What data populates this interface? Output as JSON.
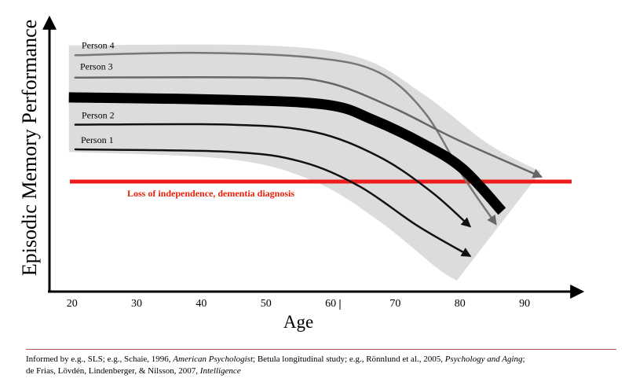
{
  "chart_data": {
    "type": "line",
    "ylabel": "Episodic Memory Performance",
    "xlabel": "Age",
    "x_ticks": [
      20,
      30,
      40,
      50,
      60,
      70,
      80,
      90
    ],
    "x_range": [
      17,
      98
    ],
    "y_range": [
      0,
      100
    ],
    "band": {
      "upper": [
        [
          20,
          95
        ],
        [
          50,
          95
        ],
        [
          65,
          90
        ],
        [
          75,
          75
        ],
        [
          85,
          55
        ],
        [
          93,
          44
        ]
      ],
      "lower": [
        [
          20,
          52
        ],
        [
          45,
          49
        ],
        [
          58,
          40
        ],
        [
          68,
          24
        ],
        [
          77,
          5
        ],
        [
          80,
          0
        ]
      ]
    },
    "threshold": {
      "label": "Loss of independence, dementia diagnosis",
      "y": 40,
      "color": "#ee1c1c"
    },
    "series": [
      {
        "name": "Person 4",
        "color": "#777777",
        "width": 2.5,
        "label_color": "#555555",
        "points": [
          [
            21,
            91
          ],
          [
            40,
            92
          ],
          [
            58,
            90
          ],
          [
            68,
            84
          ],
          [
            75,
            68
          ],
          [
            81,
            42
          ],
          [
            86,
            23
          ]
        ]
      },
      {
        "name": "Person 3",
        "color": "#666666",
        "width": 2.5,
        "label_color": "#222222",
        "points": [
          [
            21,
            82
          ],
          [
            50,
            82
          ],
          [
            60,
            80
          ],
          [
            70,
            70
          ],
          [
            80,
            57
          ],
          [
            93,
            42
          ]
        ]
      },
      {
        "name": "",
        "color": "#000000",
        "width": 13,
        "points": [
          [
            20,
            74
          ],
          [
            45,
            73
          ],
          [
            60,
            71
          ],
          [
            67,
            65
          ],
          [
            75,
            55
          ],
          [
            81,
            45
          ],
          [
            87,
            28
          ]
        ]
      },
      {
        "name": "Person 2",
        "color": "#111111",
        "width": 2.5,
        "label_color": "#000000",
        "points": [
          [
            21,
            63
          ],
          [
            45,
            63
          ],
          [
            58,
            60
          ],
          [
            68,
            50
          ],
          [
            76,
            36
          ],
          [
            82,
            22
          ]
        ]
      },
      {
        "name": "Person 1",
        "color": "#111111",
        "width": 2.5,
        "label_color": "#000000",
        "points": [
          [
            21,
            53
          ],
          [
            45,
            52
          ],
          [
            56,
            48
          ],
          [
            65,
            38
          ],
          [
            74,
            22
          ],
          [
            82,
            10
          ]
        ]
      }
    ],
    "grid": false,
    "legend": "inline"
  },
  "citation": {
    "line1_pre": "Informed by e.g., SLS; e.g., Schaie, 1996, ",
    "line1_ital1": "American Psychologist",
    "line1_mid": "; Betula longitudinal study; e.g., Rönnlund et al., 2005, ",
    "line1_ital2": "Psychology and Aging",
    "line1_post": ";",
    "line2_pre": "de Frias, Lövdén, Lindenberger, & Nilsson, 2007, ",
    "line2_ital": "Intelligence"
  }
}
